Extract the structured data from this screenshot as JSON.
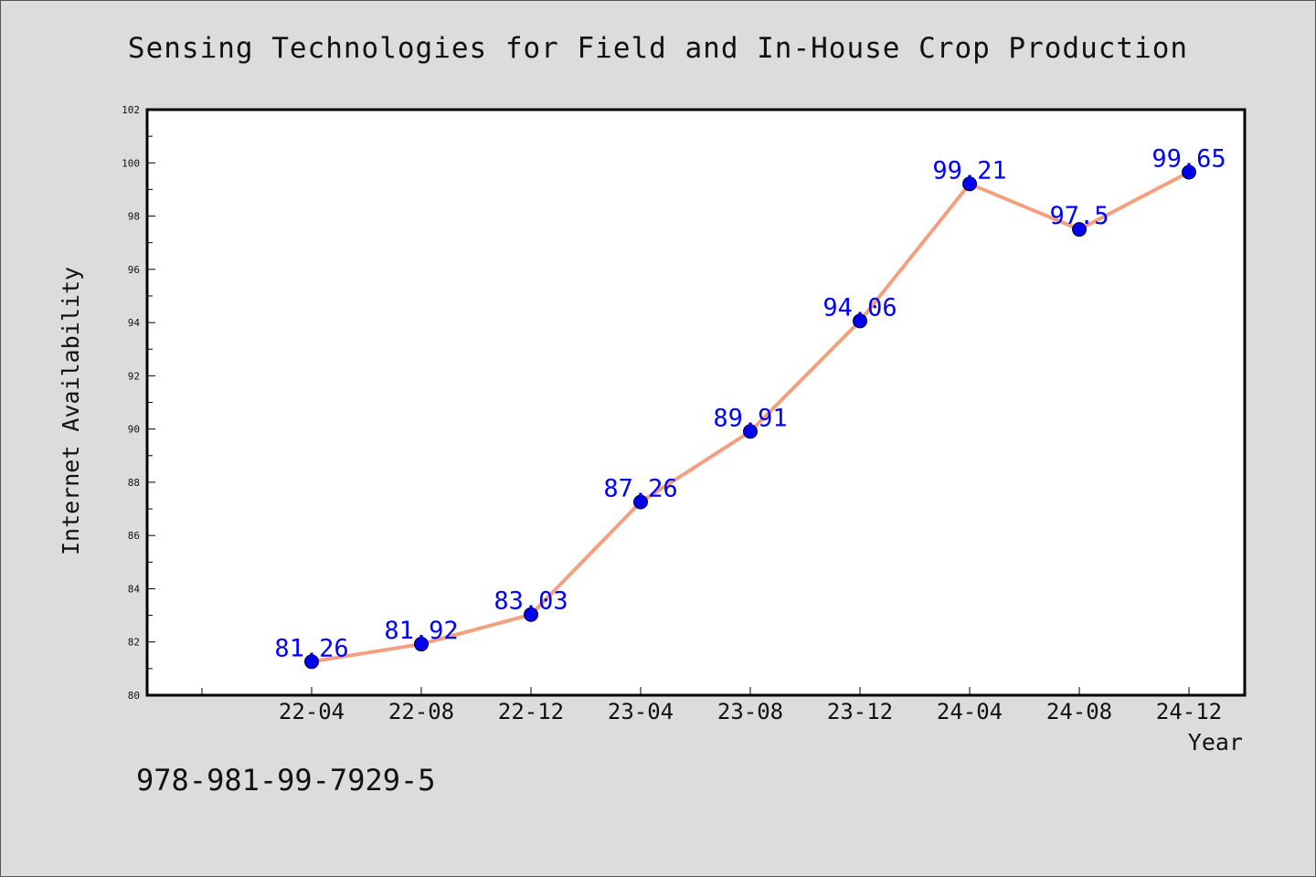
{
  "title": "Sensing Technologies for Field and In-House Crop Production",
  "footnote": "978-981-99-7929-5",
  "colors": {
    "background": "#dcdcdc",
    "plot_background": "#ffffff",
    "line": "#f4a080",
    "marker": "#0000ee",
    "data_label": "#0000ff"
  },
  "chart_data": {
    "type": "line",
    "title": "Sensing Technologies for Field and In-House Crop Production",
    "xlabel": "Year",
    "ylabel": "Internet Availability",
    "categories": [
      "22-04",
      "22-08",
      "22-12",
      "23-04",
      "23-08",
      "23-12",
      "24-04",
      "24-08",
      "24-12"
    ],
    "series": [
      {
        "values": [
          81.26,
          81.92,
          83.03,
          87.26,
          89.91,
          94.06,
          99.21,
          97.5,
          99.65
        ],
        "labels": [
          "81.26",
          "81.92",
          "83.03",
          "87.26",
          "89.91",
          "94.06",
          "99.21",
          "97.5",
          "99.65"
        ]
      }
    ],
    "ylim": [
      80,
      102
    ],
    "yticks": [
      80,
      82,
      84,
      86,
      88,
      90,
      92,
      94,
      96,
      98,
      100,
      102
    ],
    "grid": false,
    "legend": "none"
  }
}
